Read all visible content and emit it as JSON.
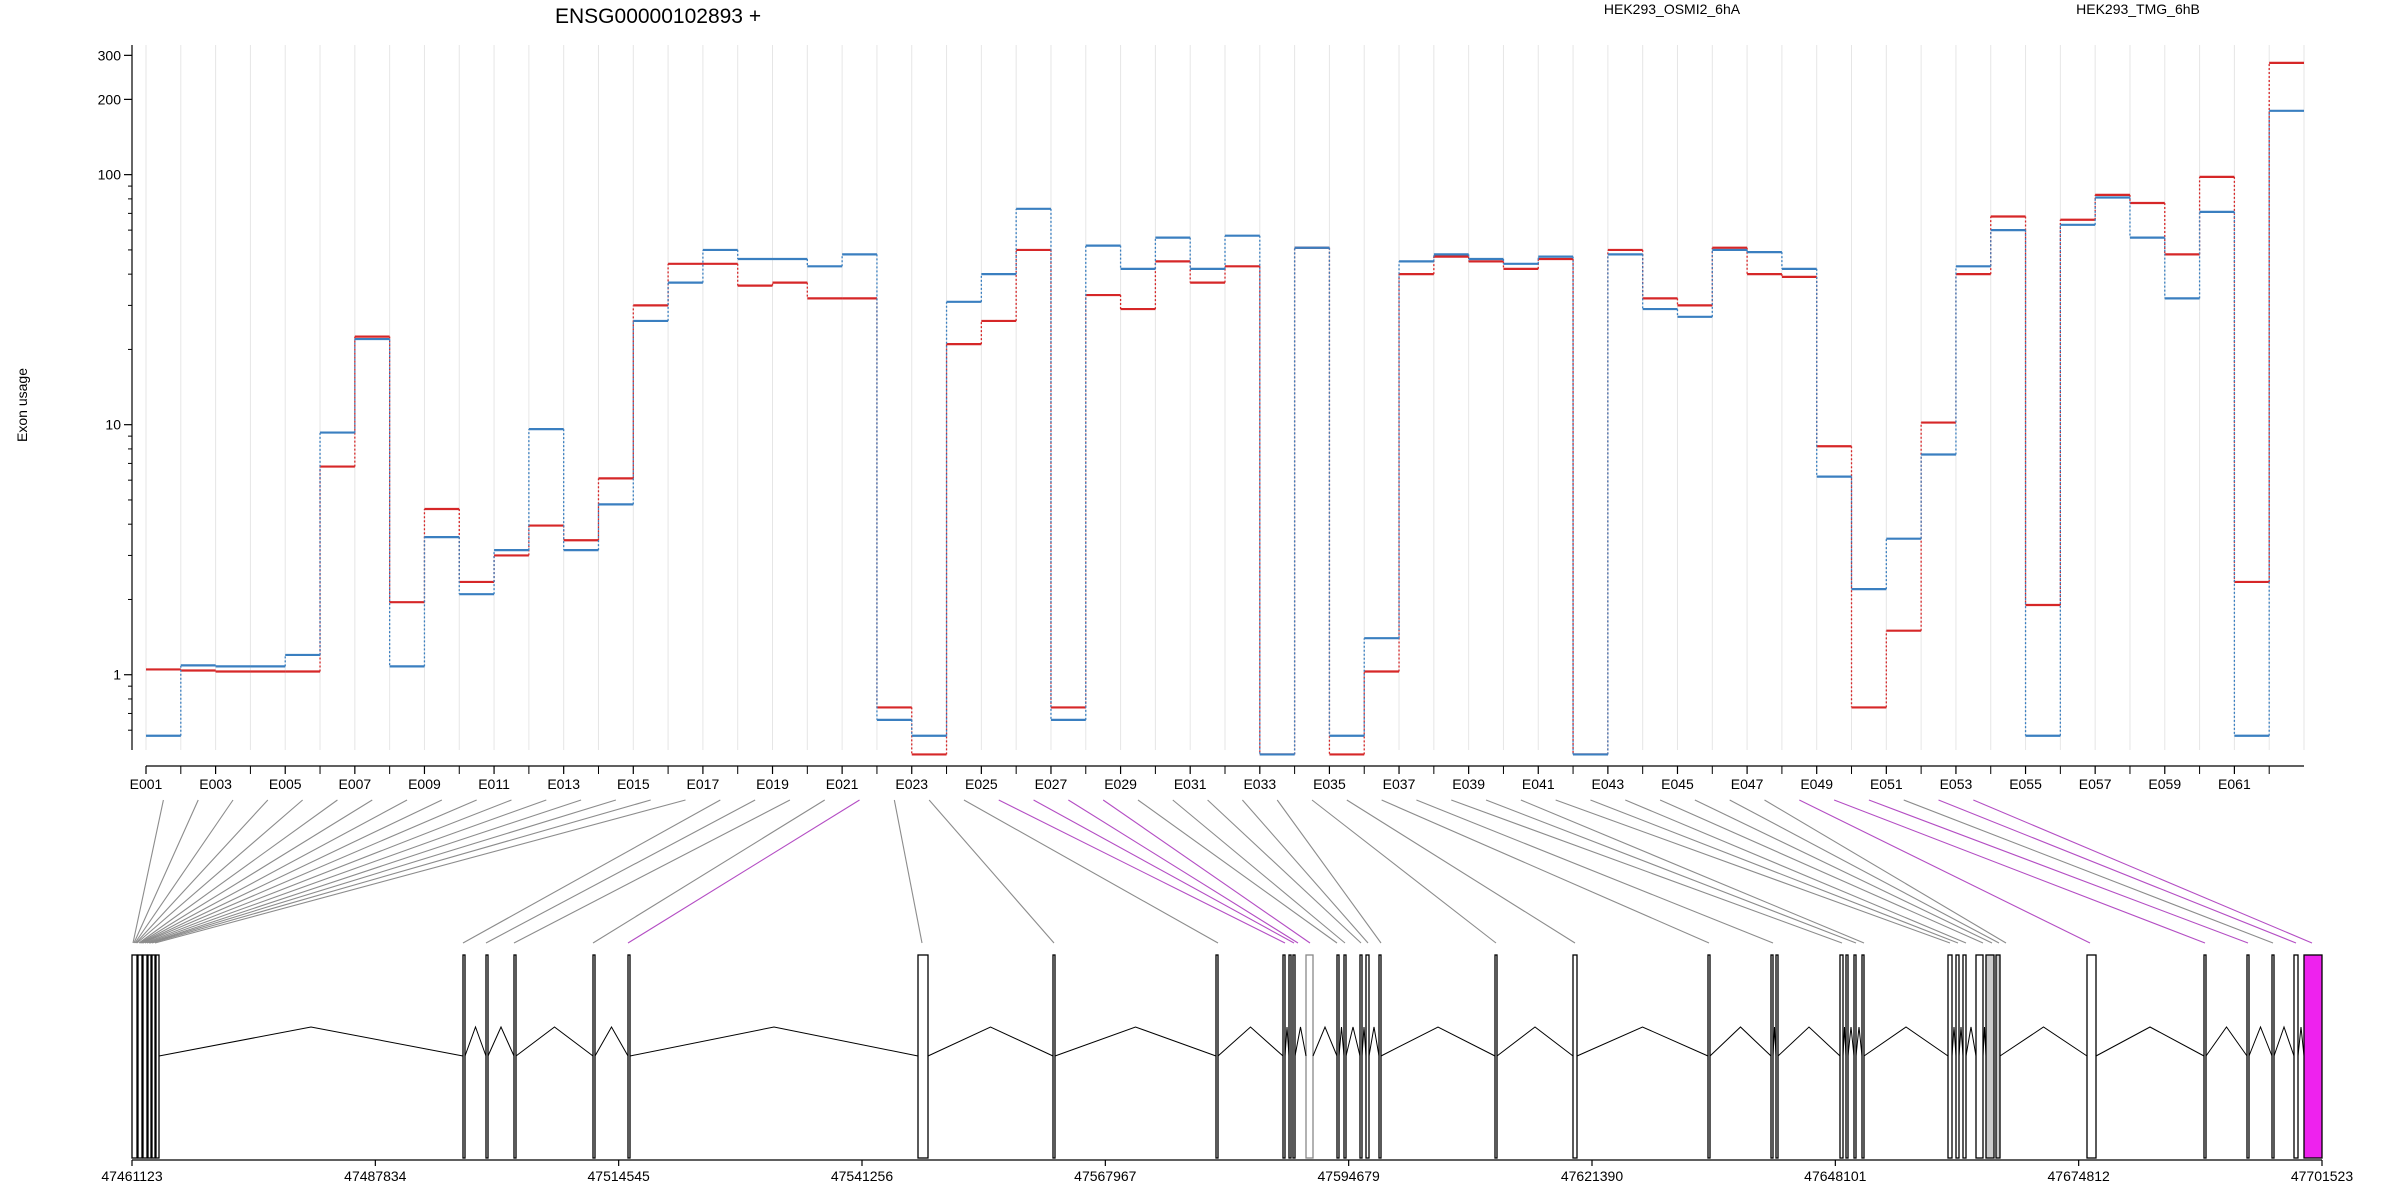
{
  "chart_data": {
    "type": "line",
    "title": "ENSG00000102893 +",
    "xlabel": "",
    "ylabel": "Exon usage",
    "y_scale": "log",
    "ylim": [
      0.5,
      330
    ],
    "yticks": [
      1,
      10,
      100,
      200,
      300
    ],
    "ytick_labels": [
      "1",
      "10",
      "100",
      "200",
      "300"
    ],
    "legend_position": "top-right",
    "grid": true,
    "colors": {
      "red": "#d62728",
      "blue": "#3a7fc0",
      "purple": "#b44ec4",
      "magenta": "#ee22ee",
      "gray": "#8c8c8c"
    },
    "categories": [
      "E001",
      "E002",
      "E003",
      "E004",
      "E005",
      "E006",
      "E007",
      "E008",
      "E009",
      "E010",
      "E011",
      "E012",
      "E013",
      "E014",
      "E015",
      "E016",
      "E017",
      "E018",
      "E019",
      "E020",
      "E021",
      "E022",
      "E023",
      "E024",
      "E025",
      "E026",
      "E027",
      "E028",
      "E029",
      "E030",
      "E031",
      "E032",
      "E033",
      "E034",
      "E035",
      "E036",
      "E037",
      "E038",
      "E039",
      "E040",
      "E041",
      "E042",
      "E043",
      "E044",
      "E045",
      "E046",
      "E047",
      "E048",
      "E049",
      "E050",
      "E051",
      "E052",
      "E053",
      "E054",
      "E055",
      "E056",
      "E057",
      "E058",
      "E059",
      "E060",
      "E061",
      "E062"
    ],
    "tick_labels": [
      "E001",
      "E003",
      "E005",
      "E007",
      "E009",
      "E011",
      "E013",
      "E015",
      "E017",
      "E019",
      "E021",
      "E023",
      "E025",
      "E027",
      "E029",
      "E031",
      "E033",
      "E035",
      "E037",
      "E039",
      "E041",
      "E043",
      "E045",
      "E047",
      "E049",
      "E051",
      "E053",
      "E055",
      "E057",
      "E059",
      "E061"
    ],
    "series": [
      {
        "name": "HEK293_OSMI2_6hA",
        "color": "#d62728",
        "values": [
          1.05,
          1.04,
          1.03,
          1.03,
          1.03,
          6.8,
          22.5,
          1.95,
          4.6,
          2.35,
          3.0,
          3.95,
          3.45,
          6.1,
          30,
          44,
          44,
          36,
          37,
          32,
          32,
          0.74,
          0.48,
          21,
          26,
          50,
          0.74,
          33,
          29,
          45,
          37,
          43,
          0.48,
          51,
          0.48,
          1.03,
          40,
          47,
          45,
          42,
          46,
          0.48,
          50,
          32,
          30,
          51,
          40,
          39,
          8.2,
          0.74,
          1.5,
          10.2,
          40,
          68,
          1.9,
          66,
          83,
          77,
          48,
          98,
          2.35,
          280
        ]
      },
      {
        "name": "HEK293_TMG_6hB",
        "color": "#3a7fc0",
        "values": [
          0.57,
          1.09,
          1.08,
          1.08,
          1.2,
          9.3,
          22,
          1.08,
          3.55,
          2.1,
          3.15,
          9.6,
          3.15,
          4.8,
          26,
          37,
          50,
          46,
          46,
          43,
          48,
          0.66,
          0.57,
          31,
          40,
          73,
          0.66,
          52,
          42,
          56,
          42,
          57,
          0.48,
          51,
          0.57,
          1.4,
          45,
          48,
          46,
          44,
          47,
          0.48,
          48,
          29,
          27,
          50,
          49,
          42,
          6.2,
          2.2,
          3.5,
          7.6,
          43,
          60,
          0.57,
          63,
          81,
          56,
          32,
          71,
          0.57,
          180
        ]
      }
    ],
    "genomic_ticks": [
      "47461123",
      "47487834",
      "47514545",
      "47541256",
      "47567967",
      "47594679",
      "47621390",
      "47648101",
      "47674812",
      "47701523"
    ]
  }
}
